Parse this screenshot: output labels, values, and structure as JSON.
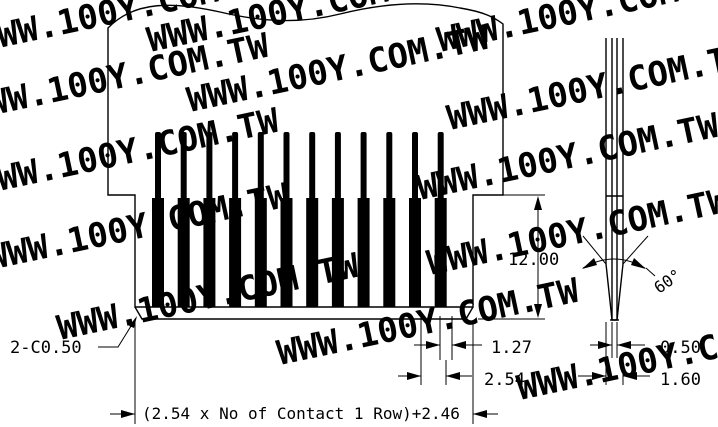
{
  "watermark": {
    "text": "WWW.100Y.COM.TW"
  },
  "contacts": {
    "count": 12
  },
  "dimensions": {
    "height": "12.00",
    "chamfer": "2-C0.50",
    "width_formula": "(2.54 x No of Contact 1 Row)+2.46",
    "contact_width": "1.27",
    "pitch": "2.54",
    "angle": "60°",
    "tip_width": "0.50",
    "thickness": "1.60"
  }
}
